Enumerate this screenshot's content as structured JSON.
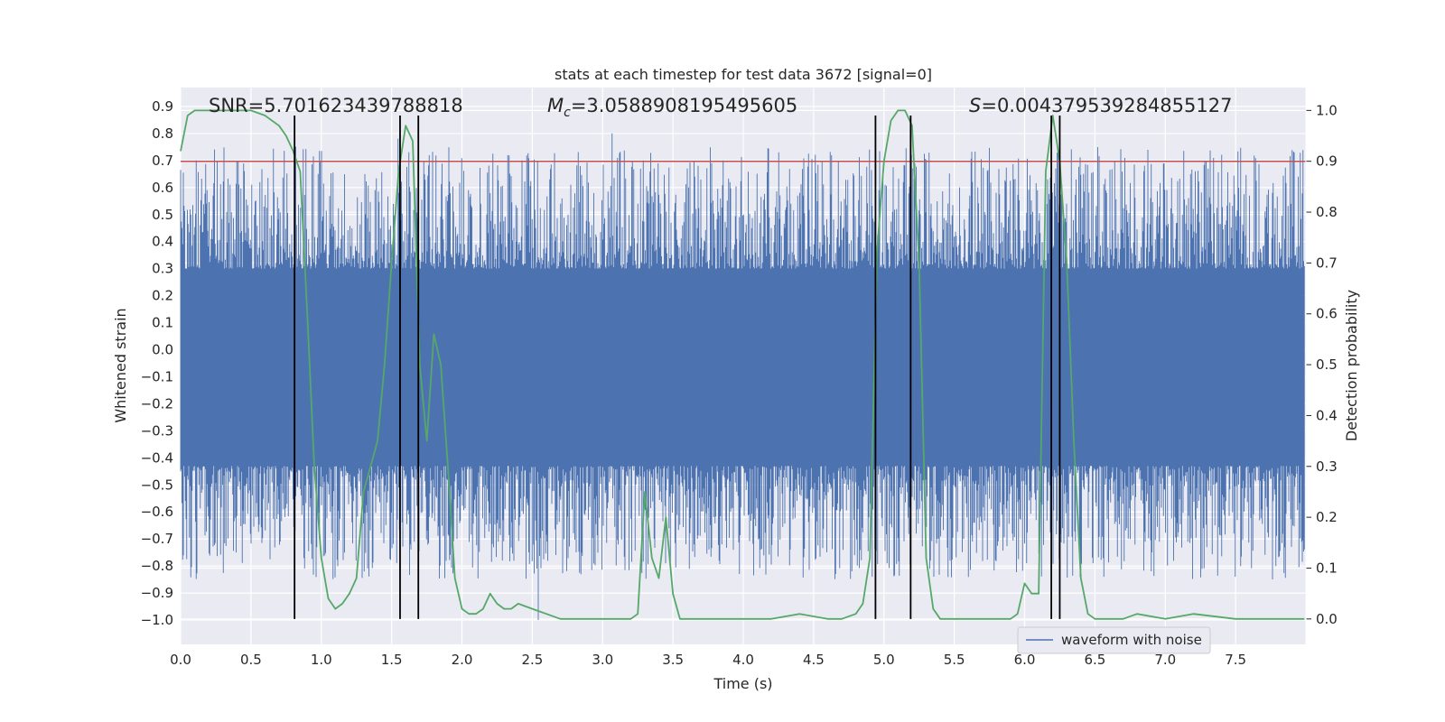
{
  "chart_data": {
    "type": "line",
    "title": "stats at each timestep for test data 3672 [signal=0]",
    "xlabel": "Time (s)",
    "ylabel_left": "Whitened strain",
    "ylabel_right": "Detection probability",
    "xlim": [
      0.0,
      8.0
    ],
    "ylim_left": [
      -1.09,
      0.97
    ],
    "ylim_right": [
      -0.05,
      1.045
    ],
    "x_ticks": [
      "0.0",
      "0.5",
      "1.0",
      "1.5",
      "2.0",
      "2.5",
      "3.0",
      "3.5",
      "4.0",
      "4.5",
      "5.0",
      "5.5",
      "6.0",
      "6.5",
      "7.0",
      "7.5"
    ],
    "y_left_ticks": [
      "0.9",
      "0.8",
      "0.7",
      "0.6",
      "0.5",
      "0.4",
      "0.3",
      "0.2",
      "0.1",
      "0.0",
      "−0.1",
      "−0.2",
      "−0.3",
      "−0.4",
      "−0.5",
      "−0.6",
      "−0.7",
      "−0.8",
      "−0.9",
      "−1.0"
    ],
    "y_right_ticks": [
      "1.0",
      "0.9",
      "0.8",
      "0.7",
      "0.6",
      "0.5",
      "0.4",
      "0.3",
      "0.2",
      "0.1",
      "0.0"
    ],
    "annotations": {
      "snr": "SNR=5.701623439788818",
      "mc_symbol": "M",
      "mc_sub": "c",
      "mc_value": "=3.0588908195495605",
      "s_symbol": "S",
      "s_value": "=0.004379539284855127"
    },
    "threshold": {
      "value": 0.9,
      "axis": "right",
      "color": "#c44e52"
    },
    "vertical_markers": [
      0.81,
      1.56,
      1.69,
      4.94,
      5.19,
      6.19,
      6.25
    ],
    "waveform": {
      "name": "waveform with noise",
      "color": "#4c72b0",
      "t_start": 0.0,
      "t_end": 7.99,
      "band_low": -0.43,
      "band_high": 0.3
    },
    "probability": {
      "name": "detection probability",
      "color": "#55a868",
      "x": [
        0.0,
        0.05,
        0.1,
        0.2,
        0.3,
        0.4,
        0.5,
        0.6,
        0.7,
        0.75,
        0.8,
        0.85,
        0.9,
        0.95,
        1.0,
        1.05,
        1.1,
        1.15,
        1.2,
        1.25,
        1.3,
        1.35,
        1.4,
        1.45,
        1.5,
        1.55,
        1.6,
        1.65,
        1.7,
        1.75,
        1.8,
        1.85,
        1.9,
        1.95,
        2.0,
        2.05,
        2.1,
        2.15,
        2.2,
        2.25,
        2.3,
        2.35,
        2.4,
        2.5,
        2.6,
        2.7,
        2.8,
        3.0,
        3.2,
        3.25,
        3.3,
        3.35,
        3.4,
        3.45,
        3.5,
        3.55,
        3.6,
        3.7,
        4.0,
        4.2,
        4.4,
        4.6,
        4.7,
        4.8,
        4.85,
        4.9,
        4.95,
        5.0,
        5.05,
        5.1,
        5.15,
        5.2,
        5.25,
        5.3,
        5.35,
        5.4,
        5.45,
        5.5,
        5.9,
        5.95,
        6.0,
        6.05,
        6.1,
        6.15,
        6.2,
        6.25,
        6.3,
        6.35,
        6.4,
        6.45,
        6.5,
        6.55,
        6.6,
        6.7,
        6.8,
        7.0,
        7.2,
        7.5,
        7.99
      ],
      "y": [
        0.92,
        0.99,
        1.0,
        1.0,
        1.0,
        1.0,
        1.0,
        0.99,
        0.97,
        0.95,
        0.92,
        0.88,
        0.6,
        0.3,
        0.12,
        0.04,
        0.02,
        0.03,
        0.05,
        0.08,
        0.25,
        0.3,
        0.35,
        0.5,
        0.7,
        0.88,
        0.97,
        0.94,
        0.5,
        0.35,
        0.56,
        0.5,
        0.3,
        0.08,
        0.02,
        0.01,
        0.01,
        0.02,
        0.05,
        0.03,
        0.02,
        0.02,
        0.03,
        0.02,
        0.01,
        0.0,
        0.0,
        0.0,
        0.0,
        0.01,
        0.25,
        0.12,
        0.08,
        0.2,
        0.05,
        0.0,
        0.0,
        0.0,
        0.0,
        0.0,
        0.01,
        0.0,
        0.0,
        0.01,
        0.03,
        0.12,
        0.72,
        0.9,
        0.98,
        1.0,
        1.0,
        0.97,
        0.7,
        0.12,
        0.02,
        0.0,
        0.0,
        0.0,
        0.0,
        0.01,
        0.07,
        0.05,
        0.05,
        0.88,
        0.99,
        0.9,
        0.7,
        0.35,
        0.08,
        0.01,
        0.0,
        0.0,
        0.0,
        0.0,
        0.01,
        0.0,
        0.01,
        0.0,
        0.0
      ]
    },
    "legend": {
      "position": "lower-right",
      "entries": [
        "waveform with noise"
      ]
    }
  }
}
